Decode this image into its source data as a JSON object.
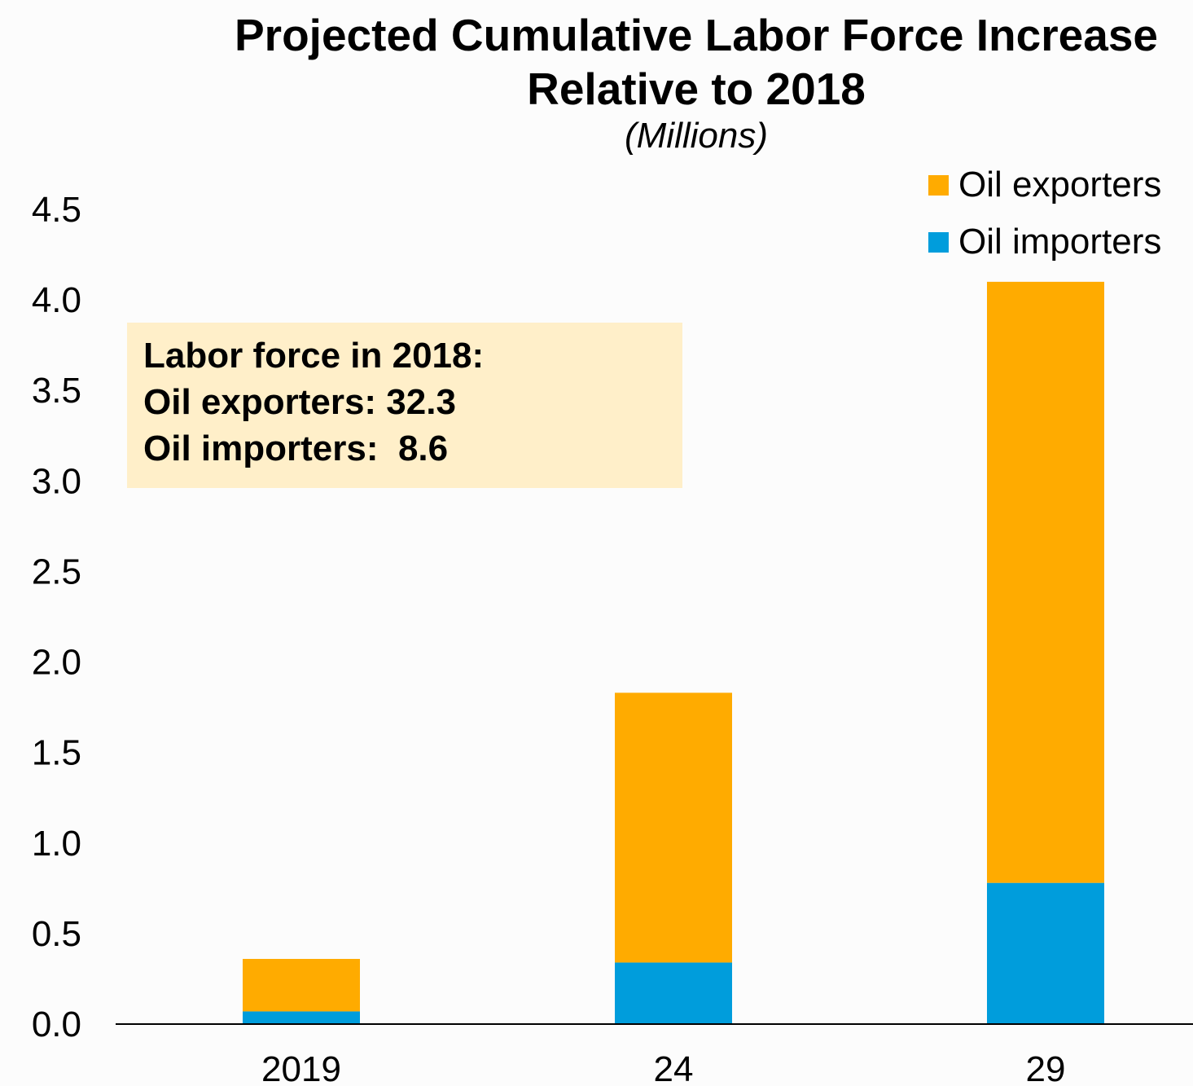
{
  "chart_data": {
    "type": "bar",
    "stacked": true,
    "title": "Projected Cumulative Labor Force Increase Relative to 2018",
    "subtitle": "(Millions)",
    "categories": [
      "2019",
      "24",
      "29"
    ],
    "series": [
      {
        "name": "Oil importers",
        "values": [
          0.07,
          0.34,
          0.78
        ],
        "color": "#009ddc"
      },
      {
        "name": "Oil exporters",
        "values": [
          0.29,
          1.49,
          3.32
        ],
        "color": "#ffab00"
      }
    ],
    "ylim": [
      0,
      4.5
    ],
    "yticks": [
      "0.0",
      "0.5",
      "1.0",
      "1.5",
      "2.0",
      "2.5",
      "3.0",
      "3.5",
      "4.0",
      "4.5"
    ],
    "legend_position": "top-right",
    "grid": false,
    "annotation": {
      "lines": [
        "Labor force in 2018:",
        "Oil exporters: 32.3",
        "Oil importers:  8.6"
      ],
      "background": "#ffefc9"
    }
  }
}
